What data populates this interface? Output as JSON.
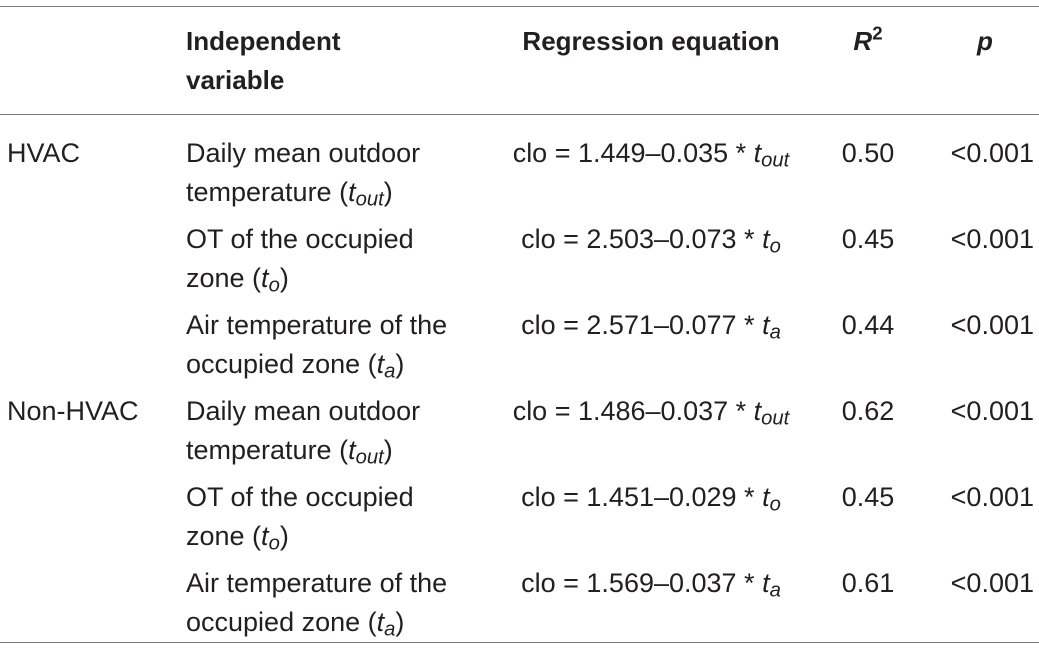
{
  "table": {
    "headers": {
      "group": "",
      "independent_variable": "Independent variable",
      "regression_equation": "Regression equation",
      "r2_base": "R",
      "r2_sup": "2",
      "p": "p"
    },
    "rows": [
      {
        "group": "HVAC",
        "var_line1": "Daily mean outdoor",
        "var_line2_prefix": "temperature (",
        "var_sub": "t",
        "var_sub_index": "out",
        "var_line2_suffix": ")",
        "eq_prefix": "clo = 1.449–0.035 * ",
        "eq_var": "t",
        "eq_var_index": "out",
        "r2": "0.50",
        "p": "<0.001"
      },
      {
        "group": "",
        "var_line1": "OT of the occupied",
        "var_line2_prefix": "zone (",
        "var_sub": "t",
        "var_sub_index": "o",
        "var_line2_suffix": ")",
        "eq_prefix": "clo = 2.503–0.073 * ",
        "eq_var": "t",
        "eq_var_index": "o",
        "r2": "0.45",
        "p": "<0.001"
      },
      {
        "group": "",
        "var_line1": "Air temperature of the",
        "var_line2_prefix": "occupied zone (",
        "var_sub": "t",
        "var_sub_index": "a",
        "var_line2_suffix": ")",
        "eq_prefix": "clo = 2.571–0.077 * ",
        "eq_var": "t",
        "eq_var_index": "a",
        "r2": "0.44",
        "p": "<0.001"
      },
      {
        "group": "Non-HVAC",
        "var_line1": "Daily mean outdoor",
        "var_line2_prefix": "temperature (",
        "var_sub": "t",
        "var_sub_index": "out",
        "var_line2_suffix": ")",
        "eq_prefix": "clo = 1.486–0.037 * ",
        "eq_var": "t",
        "eq_var_index": "out",
        "r2": "0.62",
        "p": "<0.001"
      },
      {
        "group": "",
        "var_line1": "OT of the occupied",
        "var_line2_prefix": "zone (",
        "var_sub": "t",
        "var_sub_index": "o",
        "var_line2_suffix": ")",
        "eq_prefix": "clo = 1.451–0.029 * ",
        "eq_var": "t",
        "eq_var_index": "o",
        "r2": "0.45",
        "p": "<0.001"
      },
      {
        "group": "",
        "var_line1": "Air temperature of the",
        "var_line2_prefix": "occupied zone (",
        "var_sub": "t",
        "var_sub_index": "a",
        "var_line2_suffix": ")",
        "eq_prefix": "clo = 1.569–0.037 * ",
        "eq_var": "t",
        "eq_var_index": "a",
        "r2": "0.61",
        "p": "<0.001"
      }
    ]
  }
}
